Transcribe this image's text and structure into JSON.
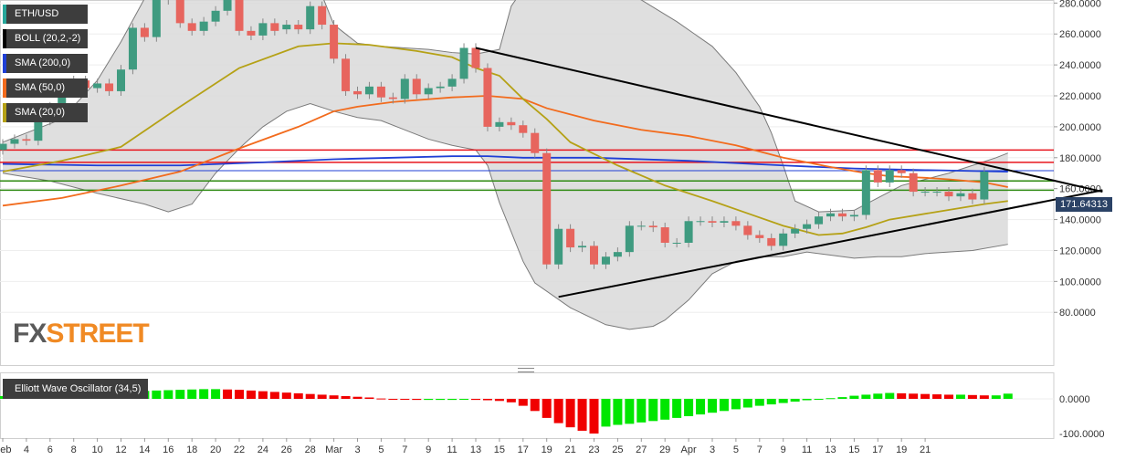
{
  "legend": [
    {
      "label": "ETH/USD",
      "color": "#26a69a"
    },
    {
      "label": "BOLL (20,2,-2)",
      "color": "#000000"
    },
    {
      "label": "SMA (200,0)",
      "color": "#1f3fd6"
    },
    {
      "label": "SMA (50,0)",
      "color": "#f26b1d"
    },
    {
      "label": "SMA (20,0)",
      "color": "#b5a116"
    }
  ],
  "oscillator_label": "Elliott Wave Oscillator (34,5)",
  "current_price": "171.64313",
  "logo": {
    "part1": "FX",
    "part2": "STREET"
  },
  "chart_data": [
    {
      "type": "candlestick",
      "title": "ETH/USD daily",
      "y_ticks": [
        "80.0000",
        "100.0000",
        "120.0000",
        "140.0000",
        "160.0000",
        "180.0000",
        "200.0000",
        "220.0000",
        "240.0000",
        "260.0000",
        "280.0000"
      ],
      "x_ticks": [
        "Feb",
        "4",
        "6",
        "8",
        "10",
        "12",
        "14",
        "16",
        "18",
        "20",
        "22",
        "24",
        "26",
        "28",
        "Mar",
        "3",
        "5",
        "7",
        "9",
        "11",
        "13",
        "15",
        "17",
        "19",
        "21",
        "23",
        "25",
        "27",
        "29",
        "Apr",
        "3",
        "5",
        "7",
        "9",
        "11",
        "13",
        "15",
        "17",
        "19",
        "21"
      ],
      "candles": [
        {
          "o": 185,
          "c": 189
        },
        {
          "o": 189,
          "c": 192
        },
        {
          "o": 192,
          "c": 191
        },
        {
          "o": 191,
          "c": 204
        },
        {
          "o": 204,
          "c": 213
        },
        {
          "o": 213,
          "c": 223
        },
        {
          "o": 223,
          "c": 230
        },
        {
          "o": 230,
          "c": 225
        },
        {
          "o": 225,
          "c": 228
        },
        {
          "o": 228,
          "c": 223
        },
        {
          "o": 223,
          "c": 237
        },
        {
          "o": 237,
          "c": 264
        },
        {
          "o": 264,
          "c": 258
        },
        {
          "o": 258,
          "c": 282
        },
        {
          "o": 282,
          "c": 287
        },
        {
          "o": 287,
          "c": 267
        },
        {
          "o": 267,
          "c": 262
        },
        {
          "o": 262,
          "c": 268
        },
        {
          "o": 268,
          "c": 275
        },
        {
          "o": 275,
          "c": 286
        },
        {
          "o": 286,
          "c": 262
        },
        {
          "o": 262,
          "c": 259
        },
        {
          "o": 259,
          "c": 267
        },
        {
          "o": 267,
          "c": 262
        },
        {
          "o": 263,
          "c": 266
        },
        {
          "o": 266,
          "c": 263
        },
        {
          "o": 263,
          "c": 278
        },
        {
          "o": 278,
          "c": 266
        },
        {
          "o": 266,
          "c": 244
        },
        {
          "o": 244,
          "c": 223
        },
        {
          "o": 223,
          "c": 221
        },
        {
          "o": 221,
          "c": 226
        },
        {
          "o": 226,
          "c": 219
        },
        {
          "o": 219,
          "c": 218
        },
        {
          "o": 218,
          "c": 231
        },
        {
          "o": 231,
          "c": 221
        },
        {
          "o": 221,
          "c": 225
        },
        {
          "o": 225,
          "c": 226
        },
        {
          "o": 226,
          "c": 231
        },
        {
          "o": 231,
          "c": 251
        },
        {
          "o": 251,
          "c": 238
        },
        {
          "o": 238,
          "c": 200
        },
        {
          "o": 200,
          "c": 203
        },
        {
          "o": 203,
          "c": 201
        },
        {
          "o": 201,
          "c": 196
        },
        {
          "o": 196,
          "c": 183
        },
        {
          "o": 183,
          "c": 111
        },
        {
          "o": 111,
          "c": 134
        },
        {
          "o": 134,
          "c": 122
        },
        {
          "o": 122,
          "c": 123
        },
        {
          "o": 123,
          "c": 111
        },
        {
          "o": 111,
          "c": 116
        },
        {
          "o": 116,
          "c": 119
        },
        {
          "o": 119,
          "c": 136
        },
        {
          "o": 136,
          "c": 136
        },
        {
          "o": 136,
          "c": 135
        },
        {
          "o": 135,
          "c": 125
        },
        {
          "o": 125,
          "c": 125
        },
        {
          "o": 125,
          "c": 139
        },
        {
          "o": 139,
          "c": 139
        },
        {
          "o": 139,
          "c": 138
        },
        {
          "o": 138,
          "c": 139
        },
        {
          "o": 139,
          "c": 136
        },
        {
          "o": 136,
          "c": 130
        },
        {
          "o": 130,
          "c": 128
        },
        {
          "o": 128,
          "c": 123
        },
        {
          "o": 123,
          "c": 131
        },
        {
          "o": 131,
          "c": 134
        },
        {
          "o": 134,
          "c": 137
        },
        {
          "o": 137,
          "c": 142
        },
        {
          "o": 142,
          "c": 144
        },
        {
          "o": 144,
          "c": 142
        },
        {
          "o": 142,
          "c": 143
        },
        {
          "o": 143,
          "c": 172
        },
        {
          "o": 172,
          "c": 164
        },
        {
          "o": 164,
          "c": 172
        },
        {
          "o": 172,
          "c": 170
        },
        {
          "o": 170,
          "c": 158
        },
        {
          "o": 158,
          "c": 158
        },
        {
          "o": 158,
          "c": 158
        },
        {
          "o": 158,
          "c": 155
        },
        {
          "o": 155,
          "c": 157
        },
        {
          "o": 157,
          "c": 153
        },
        {
          "o": 153,
          "c": 171
        }
      ],
      "sma20": [
        [
          0,
          171
        ],
        [
          5,
          178
        ],
        [
          10,
          187
        ],
        [
          15,
          213
        ],
        [
          20,
          238
        ],
        [
          25,
          252
        ],
        [
          28,
          254
        ],
        [
          31,
          253
        ],
        [
          35,
          249
        ],
        [
          38,
          245
        ],
        [
          40,
          238
        ],
        [
          42,
          233
        ],
        [
          44,
          218
        ],
        [
          46,
          205
        ],
        [
          48,
          190
        ],
        [
          52,
          175
        ],
        [
          56,
          162
        ],
        [
          60,
          152
        ],
        [
          63,
          144
        ],
        [
          66,
          136
        ],
        [
          69,
          130
        ],
        [
          71,
          131
        ],
        [
          73,
          135
        ],
        [
          75,
          140
        ],
        [
          79,
          145
        ],
        [
          83,
          150
        ],
        [
          85,
          152
        ]
      ],
      "sma50": [
        [
          0,
          149
        ],
        [
          5,
          154
        ],
        [
          10,
          162
        ],
        [
          15,
          171
        ],
        [
          20,
          186
        ],
        [
          25,
          200
        ],
        [
          28,
          210
        ],
        [
          30,
          213
        ],
        [
          33,
          216
        ],
        [
          38,
          219
        ],
        [
          41,
          220
        ],
        [
          44,
          218
        ],
        [
          46,
          212
        ],
        [
          50,
          204
        ],
        [
          54,
          198
        ],
        [
          58,
          194
        ],
        [
          62,
          188
        ],
        [
          66,
          180
        ],
        [
          70,
          174
        ],
        [
          73,
          170
        ],
        [
          75,
          168
        ],
        [
          78,
          167
        ],
        [
          80,
          166
        ],
        [
          83,
          164
        ],
        [
          85,
          161
        ]
      ],
      "sma200": [
        [
          0,
          176
        ],
        [
          8,
          175
        ],
        [
          15,
          175
        ],
        [
          22,
          177
        ],
        [
          28,
          179
        ],
        [
          33,
          180
        ],
        [
          38,
          181
        ],
        [
          41,
          181
        ],
        [
          44,
          180
        ],
        [
          50,
          180
        ],
        [
          58,
          178
        ],
        [
          66,
          175
        ],
        [
          72,
          173
        ],
        [
          78,
          172
        ],
        [
          85,
          171
        ]
      ],
      "boll_upper": [
        [
          0,
          190
        ],
        [
          5,
          205
        ],
        [
          8,
          230
        ],
        [
          10,
          255
        ],
        [
          12,
          283
        ],
        [
          14,
          291
        ],
        [
          16,
          295
        ],
        [
          18,
          300
        ],
        [
          20,
          300
        ],
        [
          22,
          301
        ],
        [
          24,
          298
        ],
        [
          26,
          295
        ],
        [
          27,
          285
        ],
        [
          28,
          266
        ],
        [
          30,
          254
        ],
        [
          32,
          252
        ],
        [
          34,
          251
        ],
        [
          36,
          250
        ],
        [
          38,
          248
        ],
        [
          40,
          247
        ],
        [
          42,
          250
        ],
        [
          43,
          278
        ],
        [
          44,
          289
        ],
        [
          45,
          293
        ],
        [
          48,
          295
        ],
        [
          51,
          290
        ],
        [
          54,
          282
        ],
        [
          57,
          268
        ],
        [
          60,
          252
        ],
        [
          62,
          235
        ],
        [
          64,
          213
        ],
        [
          65,
          196
        ],
        [
          66,
          175
        ],
        [
          67,
          152
        ],
        [
          69,
          145
        ],
        [
          72,
          146
        ],
        [
          74,
          154
        ],
        [
          76,
          162
        ],
        [
          78,
          166
        ],
        [
          80,
          170
        ],
        [
          82,
          175
        ],
        [
          84,
          180
        ],
        [
          85,
          183
        ]
      ],
      "boll_lower": [
        [
          0,
          170
        ],
        [
          4,
          165
        ],
        [
          8,
          157
        ],
        [
          12,
          150
        ],
        [
          14,
          145
        ],
        [
          16,
          150
        ],
        [
          18,
          170
        ],
        [
          20,
          186
        ],
        [
          22,
          200
        ],
        [
          24,
          210
        ],
        [
          26,
          215
        ],
        [
          28,
          210
        ],
        [
          30,
          206
        ],
        [
          32,
          204
        ],
        [
          34,
          198
        ],
        [
          36,
          192
        ],
        [
          38,
          188
        ],
        [
          40,
          185
        ],
        [
          41,
          175
        ],
        [
          42,
          151
        ],
        [
          44,
          113
        ],
        [
          45,
          99
        ],
        [
          48,
          83
        ],
        [
          51,
          72
        ],
        [
          53,
          69
        ],
        [
          55,
          71
        ],
        [
          56,
          75
        ],
        [
          58,
          88
        ],
        [
          60,
          105
        ],
        [
          62,
          113
        ],
        [
          64,
          116
        ],
        [
          66,
          116
        ],
        [
          68,
          119
        ],
        [
          70,
          117
        ],
        [
          72,
          115
        ],
        [
          74,
          116
        ],
        [
          76,
          116
        ],
        [
          78,
          118
        ],
        [
          80,
          119
        ],
        [
          82,
          120
        ],
        [
          85,
          124
        ]
      ],
      "resistance_lines_red": [
        185,
        177
      ],
      "blue_line": 171.64,
      "support_lines_green": [
        165,
        159
      ],
      "triangle_upper": [
        [
          40,
          251
        ],
        [
          93,
          158
        ]
      ],
      "triangle_lower": [
        [
          47,
          90
        ],
        [
          93,
          159
        ]
      ]
    },
    {
      "type": "bar",
      "title": "Elliott Wave Oscillator (34,5)",
      "y_ticks": [
        "0.0000",
        "-100.0000"
      ],
      "ylim": [
        -110,
        30
      ],
      "values": [
        8,
        10,
        12,
        13,
        15,
        16,
        17,
        18,
        19,
        20,
        21,
        22,
        23,
        24,
        25,
        26,
        27,
        28,
        28,
        27,
        26,
        24,
        22,
        20,
        18,
        16,
        14,
        12,
        10,
        8,
        6,
        4,
        1,
        -1,
        -2,
        -3,
        -3,
        -3,
        -3,
        -2,
        -3,
        -4,
        -6,
        -10,
        -20,
        -35,
        -55,
        -70,
        -82,
        -92,
        -100,
        -80,
        -75,
        -72,
        -68,
        -64,
        -60,
        -55,
        -50,
        -45,
        -40,
        -35,
        -30,
        -25,
        -20,
        -16,
        -12,
        -8,
        -4,
        -1,
        2,
        5,
        9,
        12,
        15,
        17,
        16,
        15,
        14,
        13,
        12,
        12,
        11,
        10,
        10,
        15
      ],
      "color_rule": "green when rising, red when falling"
    }
  ]
}
